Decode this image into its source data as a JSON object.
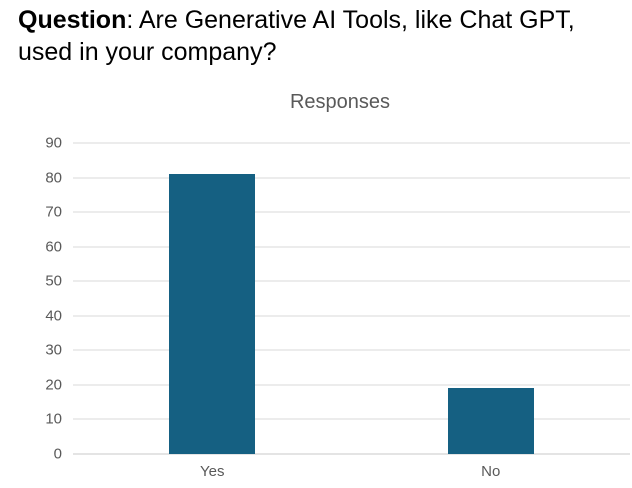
{
  "header": {
    "question_bold": "Question",
    "question_rest": ": Are Generative AI Tools, like Chat GPT, used in your company?"
  },
  "chart_data": {
    "type": "bar",
    "title": "Responses",
    "categories": [
      "Yes",
      "No"
    ],
    "values": [
      81,
      19
    ],
    "xlabel": "",
    "ylabel": "",
    "ylim": [
      0,
      90
    ],
    "yticks": [
      0,
      10,
      20,
      30,
      40,
      50,
      60,
      70,
      80,
      90
    ],
    "grid": true,
    "legend": "none",
    "colors": {
      "bar": "#156082",
      "gridline": "#D9D9D9",
      "baseline": "#C9C9C9",
      "axis_text": "#595959",
      "chart_title": "#595959",
      "question_text": "#000000",
      "background": "#FFFFFF"
    }
  }
}
